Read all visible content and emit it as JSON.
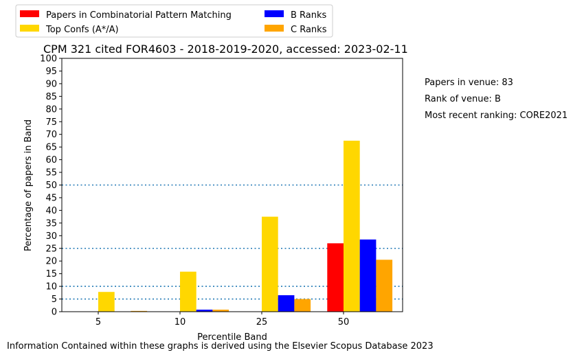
{
  "legend": [
    {
      "label": "Papers in Combinatorial Pattern Matching",
      "color": "#ff0000"
    },
    {
      "label": "Top Confs (A*/A)",
      "color": "#ffd700"
    },
    {
      "label": "B Ranks",
      "color": "#0000ff"
    },
    {
      "label": "C Ranks",
      "color": "#ffa500"
    }
  ],
  "info": {
    "papers": "Papers in venue: 83",
    "rank": "Rank of venue: B",
    "recent": "Most recent ranking: CORE2021"
  },
  "footer": "Information Contained within these graphs is derived using the Elsevier Scopus Database 2023",
  "chart_data": {
    "type": "bar",
    "title": "CPM 321 cited FOR4603 - 2018-2019-2020, accessed: 2023-02-11",
    "xlabel": "Percentile Band",
    "ylabel": "Percentage of papers in Band",
    "categories": [
      "5",
      "10",
      "25",
      "50"
    ],
    "ylim": [
      0,
      100
    ],
    "yticks": [
      "0",
      "5",
      "10",
      "15",
      "20",
      "25",
      "30",
      "35",
      "40",
      "45",
      "50",
      "55",
      "60",
      "65",
      "70",
      "75",
      "80",
      "85",
      "90",
      "95",
      "100"
    ],
    "reference_lines": [
      5,
      10,
      25,
      50
    ],
    "reference_line_color": "#1f77b4",
    "series": [
      {
        "name": "Papers in Combinatorial Pattern Matching",
        "color": "#ff0000",
        "values": [
          0,
          0,
          0,
          27
        ]
      },
      {
        "name": "Top Confs (A*/A)",
        "color": "#ffd700",
        "values": [
          7.8,
          15.8,
          37.5,
          67.5
        ]
      },
      {
        "name": "B Ranks",
        "color": "#0000ff",
        "values": [
          0,
          0.8,
          6.5,
          28.5
        ]
      },
      {
        "name": "C Ranks",
        "color": "#ffa500",
        "values": [
          0.3,
          0.8,
          5.0,
          20.5
        ]
      }
    ]
  }
}
